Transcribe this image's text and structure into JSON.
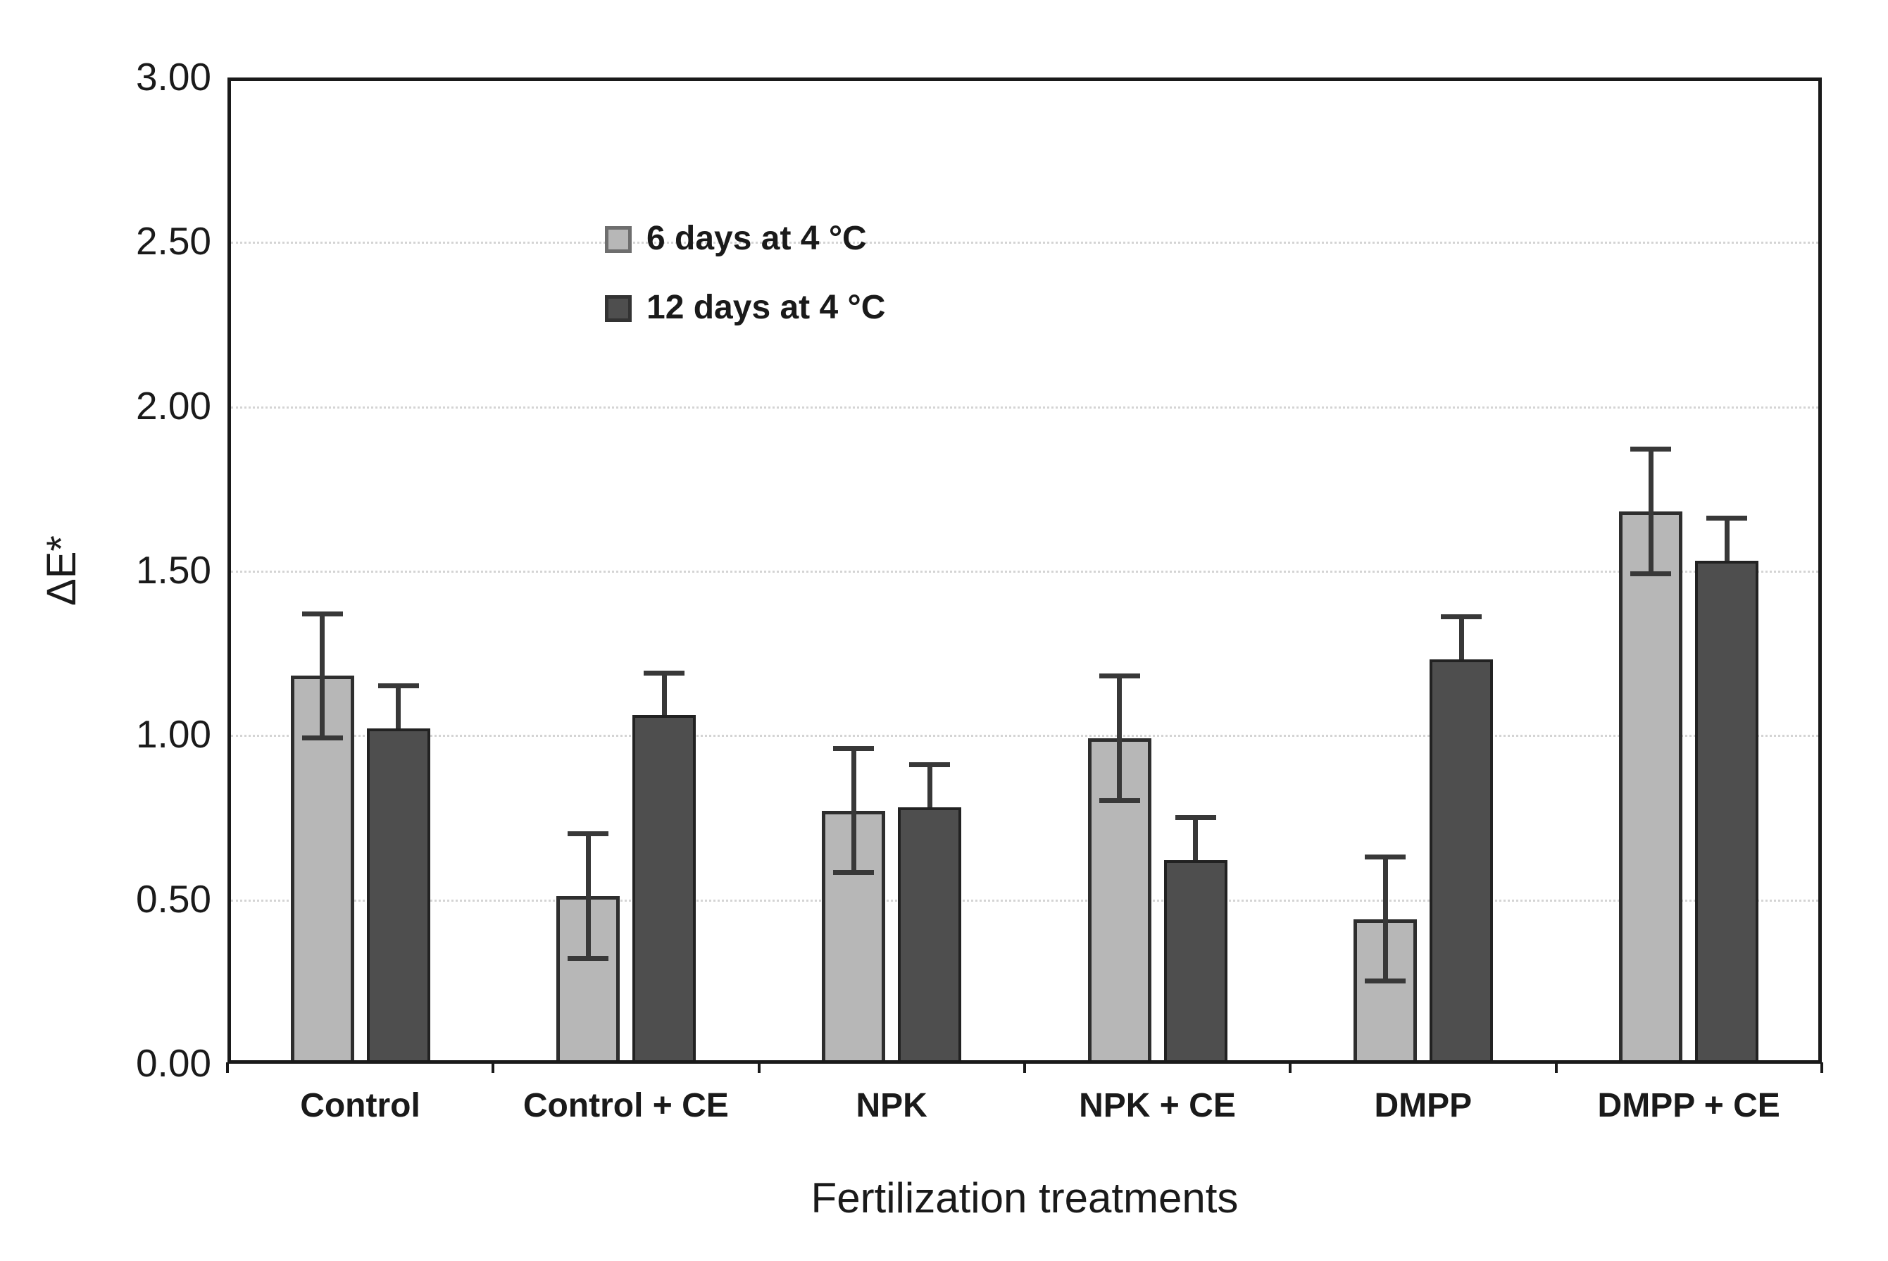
{
  "chart_data": {
    "type": "bar",
    "title": "",
    "xlabel": "Fertilization treatments",
    "ylabel": "ΔE*",
    "categories": [
      "Control",
      "Control + CE",
      "NPK",
      "NPK + CE",
      "DMPP",
      "DMPP + CE"
    ],
    "series": [
      {
        "name": "6 days at 4 °C",
        "values": [
          1.18,
          0.51,
          0.77,
          0.99,
          0.44,
          1.68
        ],
        "errors": [
          0.19,
          0.19,
          0.19,
          0.19,
          0.19,
          0.19
        ],
        "error_caps": "both",
        "fill": "#b7b7b7",
        "border": "#2e2e2e",
        "swatch_border": "#6e6e6e"
      },
      {
        "name": "12 days at 4 °C",
        "values": [
          1.02,
          1.06,
          0.78,
          0.62,
          1.23,
          1.53
        ],
        "errors": [
          0.13,
          0.13,
          0.13,
          0.13,
          0.13,
          0.13
        ],
        "error_caps": "top",
        "fill": "#4e4e4e",
        "border": "#222222",
        "swatch_border": "#333333"
      }
    ],
    "ylim": [
      0,
      3
    ],
    "ytick_step": 0.5,
    "ytick_labels": [
      "0.00",
      "0.50",
      "1.00",
      "1.50",
      "2.00",
      "2.50",
      "3.00"
    ],
    "grid": "horizontal-dotted",
    "gridline_color": "#d4d4d4",
    "legend_position": "top-left-inside",
    "error_bar_color": "#383838",
    "frame_color": "#1a1a1a"
  }
}
